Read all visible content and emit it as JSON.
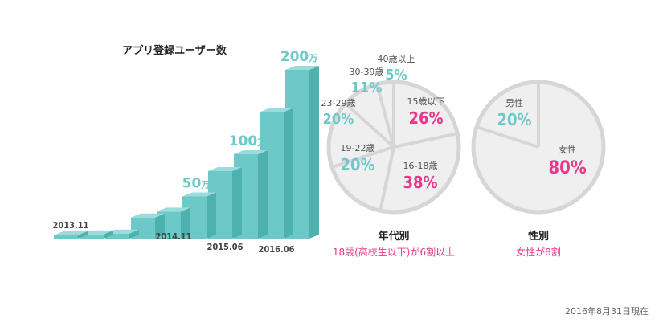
{
  "colors": {
    "teal": "#6cc9c7",
    "teal_side": "#4fb1ae",
    "teal_top": "#9adcdb",
    "pink": "#e8388b",
    "grey_text": "#666666",
    "pie_fill": "#efefef",
    "pie_stroke": "#d6d6d6"
  },
  "footnote": "2016年8月31日現在",
  "chart_data": [
    {
      "type": "bar",
      "title": "アプリ登録ユーザー数",
      "unit": "万",
      "categories": [
        "",
        "",
        "",
        "",
        "",
        "",
        "",
        "",
        "",
        ""
      ],
      "values": [
        4,
        5,
        6,
        25,
        32,
        50,
        80,
        100,
        150,
        200
      ],
      "ylim": [
        0,
        200
      ],
      "data_labels": [
        {
          "index": 5,
          "value": "50",
          "unit": "万"
        },
        {
          "index": 7,
          "value": "100",
          "unit": "万"
        },
        {
          "index": 9,
          "value": "200",
          "unit": "万"
        }
      ],
      "date_labels": [
        {
          "index": 0,
          "text": "2013.11"
        },
        {
          "index": 4,
          "text": "2014.11"
        },
        {
          "index": 6,
          "text": "2015.06"
        },
        {
          "index": 8,
          "text": "2016.06"
        }
      ]
    },
    {
      "type": "pie",
      "title": "年代別",
      "subtitle": "18歳(高校生以下)が6割以上",
      "slices": [
        {
          "label": "15歳以下",
          "value": 26
        },
        {
          "label": "16-18歳",
          "value": 38
        },
        {
          "label": "19-22歳",
          "value": 20
        },
        {
          "label": "23-29歳",
          "value": 20
        },
        {
          "label": "30-39歳",
          "value": 11
        },
        {
          "label": "40歳以上",
          "value": 5
        }
      ],
      "display_values": [
        "26%",
        "38%",
        "20%",
        "20%",
        "11%",
        "5%"
      ]
    },
    {
      "type": "pie",
      "title": "性別",
      "subtitle": "女性が8割",
      "slices": [
        {
          "label": "女性",
          "value": 80
        },
        {
          "label": "男性",
          "value": 20
        }
      ],
      "display_values": [
        "80%",
        "20%"
      ]
    }
  ]
}
